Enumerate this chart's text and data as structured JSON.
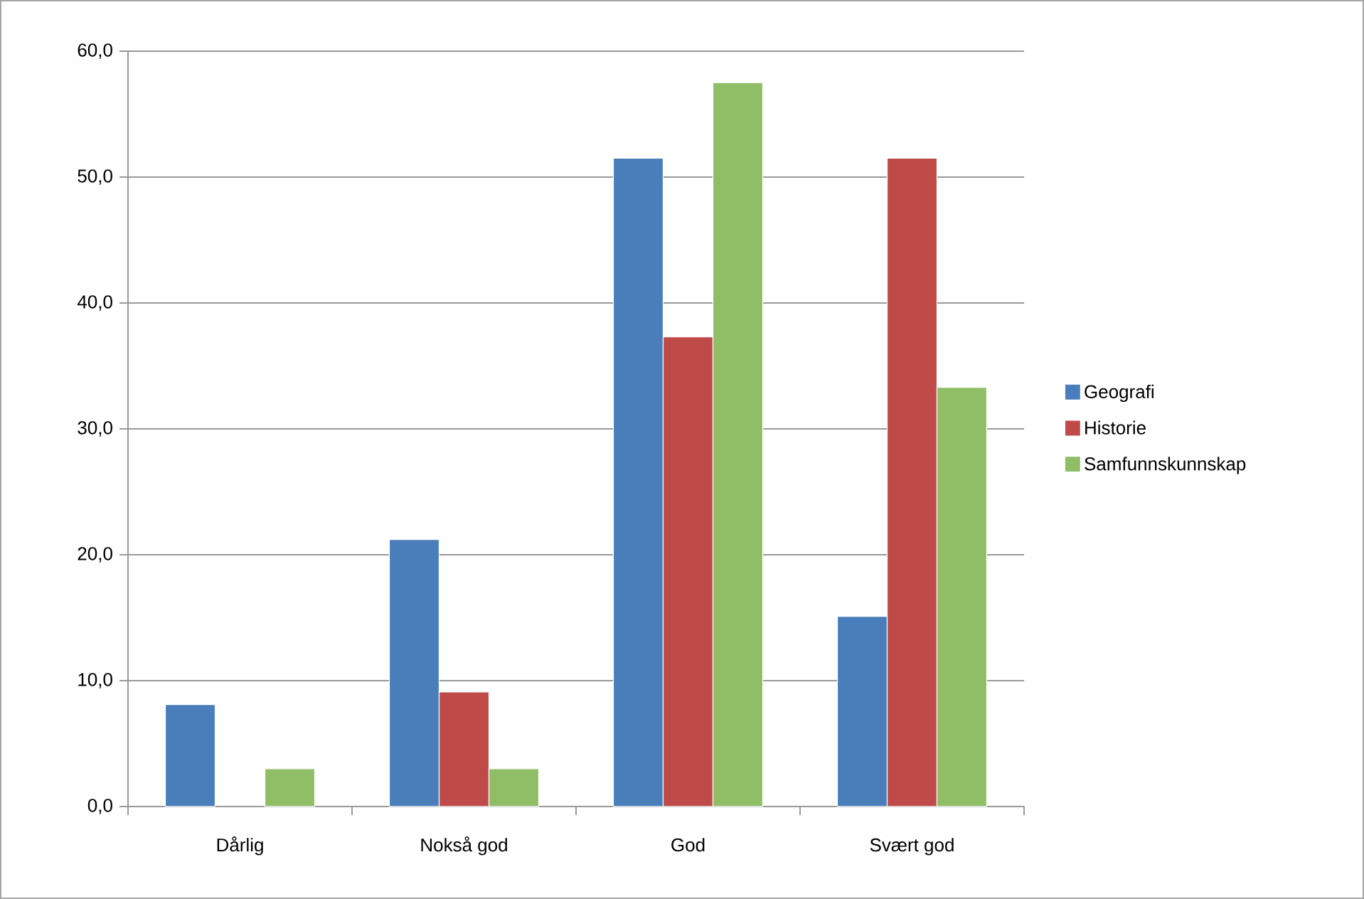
{
  "chart_data": {
    "type": "bar",
    "categories": [
      "Dårlig",
      "Nokså god",
      "God",
      "Svært god"
    ],
    "series": [
      {
        "name": "Geografi",
        "color": "#4a7ebb",
        "values": [
          8.1,
          21.2,
          51.5,
          15.1
        ]
      },
      {
        "name": "Historie",
        "color": "#be4b48",
        "values": [
          null,
          9.1,
          37.3,
          51.5
        ]
      },
      {
        "name": "Samfunnskunnskap",
        "color": "#8fbe67",
        "values": [
          3.0,
          3.0,
          57.5,
          33.3
        ]
      }
    ],
    "ylim": [
      0,
      60
    ],
    "yticks": [
      {
        "value": 0,
        "label": "0,0"
      },
      {
        "value": 10,
        "label": "10,0"
      },
      {
        "value": 20,
        "label": "20,0"
      },
      {
        "value": 30,
        "label": "30,0"
      },
      {
        "value": 40,
        "label": "40,0"
      },
      {
        "value": 50,
        "label": "50,0"
      },
      {
        "value": 60,
        "label": "60,0"
      }
    ],
    "grid": "y",
    "legend": "right"
  }
}
